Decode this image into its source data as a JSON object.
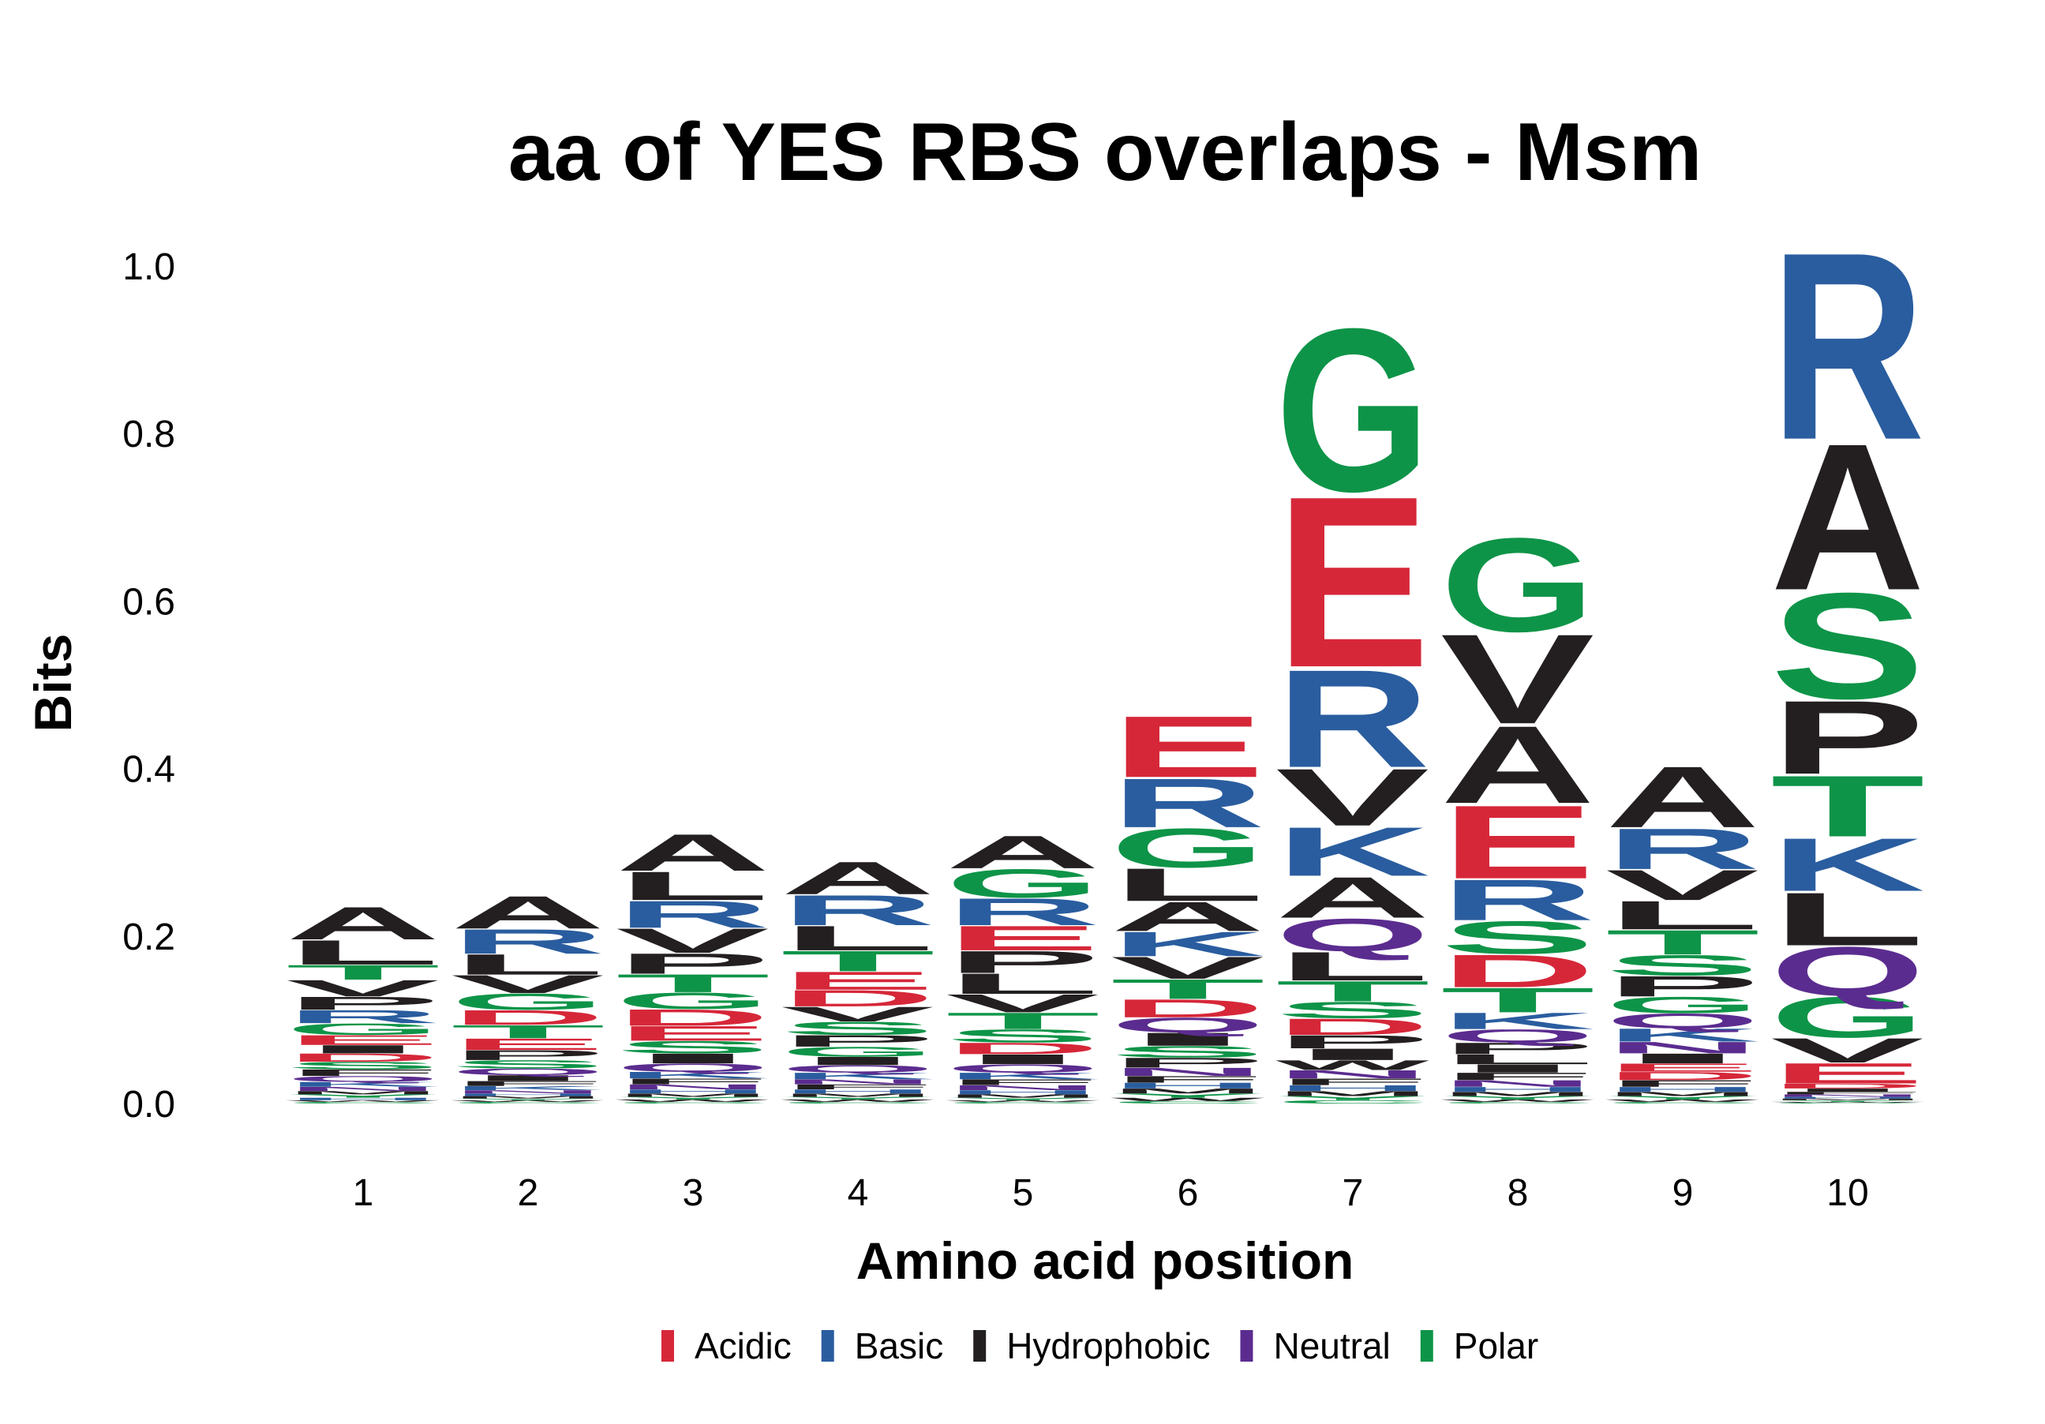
{
  "chart_data": {
    "type": "sequence-logo",
    "title": "aa of YES RBS overlaps - Msm",
    "xlabel": "Amino acid position",
    "ylabel": "Bits",
    "ylim": [
      0,
      1.0
    ],
    "yticks": [
      "0.0",
      "0.2",
      "0.4",
      "0.6",
      "0.8",
      "1.0"
    ],
    "xticks": [
      "1",
      "2",
      "3",
      "4",
      "5",
      "6",
      "7",
      "8",
      "9",
      "10"
    ],
    "legend_position": "bottom",
    "groups": {
      "Acidic": {
        "color": "#d62739",
        "residues": [
          "D",
          "E"
        ]
      },
      "Basic": {
        "color": "#2a5d9f",
        "residues": [
          "R",
          "K",
          "H"
        ]
      },
      "Hydrophobic": {
        "color": "#231f20",
        "residues": [
          "A",
          "V",
          "L",
          "I",
          "P",
          "F",
          "W",
          "M"
        ]
      },
      "Neutral": {
        "color": "#5b2c8f",
        "residues": [
          "Q",
          "N"
        ]
      },
      "Polar": {
        "color": "#0e9448",
        "residues": [
          "G",
          "S",
          "T",
          "Y",
          "C"
        ]
      }
    },
    "legend": [
      {
        "name": "Acidic",
        "color": "#d62739"
      },
      {
        "name": "Basic",
        "color": "#2a5d9f"
      },
      {
        "name": "Hydrophobic",
        "color": "#231f20"
      },
      {
        "name": "Neutral",
        "color": "#5b2c8f"
      },
      {
        "name": "Polar",
        "color": "#0e9448"
      }
    ],
    "positions": [
      {
        "position": "1",
        "letters": [
          {
            "aa": "A",
            "bits": 0.04
          },
          {
            "aa": "L",
            "bits": 0.03
          },
          {
            "aa": "T",
            "bits": 0.018
          },
          {
            "aa": "V",
            "bits": 0.02
          },
          {
            "aa": "P",
            "bits": 0.016
          },
          {
            "aa": "R",
            "bits": 0.016
          },
          {
            "aa": "G",
            "bits": 0.014
          },
          {
            "aa": "E",
            "bits": 0.012
          },
          {
            "aa": "I",
            "bits": 0.01
          },
          {
            "aa": "D",
            "bits": 0.01
          },
          {
            "aa": "S",
            "bits": 0.009
          },
          {
            "aa": "F",
            "bits": 0.008
          },
          {
            "aa": "Q",
            "bits": 0.007
          },
          {
            "aa": "K",
            "bits": 0.006
          },
          {
            "aa": "N",
            "bits": 0.005
          },
          {
            "aa": "M",
            "bits": 0.004
          },
          {
            "aa": "Y",
            "bits": 0.004
          },
          {
            "aa": "H",
            "bits": 0.003
          },
          {
            "aa": "W",
            "bits": 0.002
          },
          {
            "aa": "C",
            "bits": 0.002
          }
        ]
      },
      {
        "position": "2",
        "letters": [
          {
            "aa": "A",
            "bits": 0.04
          },
          {
            "aa": "R",
            "bits": 0.03
          },
          {
            "aa": "L",
            "bits": 0.025
          },
          {
            "aa": "V",
            "bits": 0.022
          },
          {
            "aa": "G",
            "bits": 0.02
          },
          {
            "aa": "D",
            "bits": 0.018
          },
          {
            "aa": "T",
            "bits": 0.016
          },
          {
            "aa": "E",
            "bits": 0.014
          },
          {
            "aa": "P",
            "bits": 0.012
          },
          {
            "aa": "S",
            "bits": 0.01
          },
          {
            "aa": "Q",
            "bits": 0.008
          },
          {
            "aa": "I",
            "bits": 0.007
          },
          {
            "aa": "F",
            "bits": 0.006
          },
          {
            "aa": "K",
            "bits": 0.005
          },
          {
            "aa": "N",
            "bits": 0.004
          },
          {
            "aa": "H",
            "bits": 0.003
          },
          {
            "aa": "M",
            "bits": 0.003
          },
          {
            "aa": "Y",
            "bits": 0.002
          },
          {
            "aa": "W",
            "bits": 0.002
          },
          {
            "aa": "C",
            "bits": 0.002
          }
        ]
      },
      {
        "position": "3",
        "letters": [
          {
            "aa": "A",
            "bits": 0.045
          },
          {
            "aa": "L",
            "bits": 0.035
          },
          {
            "aa": "R",
            "bits": 0.033
          },
          {
            "aa": "V",
            "bits": 0.03
          },
          {
            "aa": "P",
            "bits": 0.025
          },
          {
            "aa": "T",
            "bits": 0.022
          },
          {
            "aa": "G",
            "bits": 0.02
          },
          {
            "aa": "D",
            "bits": 0.02
          },
          {
            "aa": "E",
            "bits": 0.018
          },
          {
            "aa": "S",
            "bits": 0.015
          },
          {
            "aa": "I",
            "bits": 0.012
          },
          {
            "aa": "Q",
            "bits": 0.01
          },
          {
            "aa": "K",
            "bits": 0.008
          },
          {
            "aa": "F",
            "bits": 0.007
          },
          {
            "aa": "N",
            "bits": 0.006
          },
          {
            "aa": "H",
            "bits": 0.005
          },
          {
            "aa": "M",
            "bits": 0.004
          },
          {
            "aa": "Y",
            "bits": 0.003
          },
          {
            "aa": "W",
            "bits": 0.003
          },
          {
            "aa": "C",
            "bits": 0.002
          }
        ]
      },
      {
        "position": "4",
        "letters": [
          {
            "aa": "A",
            "bits": 0.04
          },
          {
            "aa": "R",
            "bits": 0.037
          },
          {
            "aa": "L",
            "bits": 0.03
          },
          {
            "aa": "T",
            "bits": 0.025
          },
          {
            "aa": "E",
            "bits": 0.022
          },
          {
            "aa": "D",
            "bits": 0.02
          },
          {
            "aa": "V",
            "bits": 0.018
          },
          {
            "aa": "S",
            "bits": 0.016
          },
          {
            "aa": "P",
            "bits": 0.014
          },
          {
            "aa": "G",
            "bits": 0.012
          },
          {
            "aa": "I",
            "bits": 0.01
          },
          {
            "aa": "Q",
            "bits": 0.009
          },
          {
            "aa": "K",
            "bits": 0.008
          },
          {
            "aa": "N",
            "bits": 0.006
          },
          {
            "aa": "F",
            "bits": 0.006
          },
          {
            "aa": "H",
            "bits": 0.005
          },
          {
            "aa": "M",
            "bits": 0.004
          },
          {
            "aa": "Y",
            "bits": 0.003
          },
          {
            "aa": "W",
            "bits": 0.003
          },
          {
            "aa": "C",
            "bits": 0.002
          }
        ]
      },
      {
        "position": "5",
        "letters": [
          {
            "aa": "A",
            "bits": 0.04
          },
          {
            "aa": "G",
            "bits": 0.035
          },
          {
            "aa": "R",
            "bits": 0.033
          },
          {
            "aa": "E",
            "bits": 0.03
          },
          {
            "aa": "P",
            "bits": 0.027
          },
          {
            "aa": "L",
            "bits": 0.025
          },
          {
            "aa": "V",
            "bits": 0.022
          },
          {
            "aa": "T",
            "bits": 0.02
          },
          {
            "aa": "S",
            "bits": 0.016
          },
          {
            "aa": "D",
            "bits": 0.014
          },
          {
            "aa": "I",
            "bits": 0.012
          },
          {
            "aa": "Q",
            "bits": 0.01
          },
          {
            "aa": "K",
            "bits": 0.008
          },
          {
            "aa": "F",
            "bits": 0.007
          },
          {
            "aa": "N",
            "bits": 0.006
          },
          {
            "aa": "H",
            "bits": 0.005
          },
          {
            "aa": "M",
            "bits": 0.004
          },
          {
            "aa": "Y",
            "bits": 0.003
          },
          {
            "aa": "W",
            "bits": 0.002
          },
          {
            "aa": "C",
            "bits": 0.002
          }
        ]
      },
      {
        "position": "6",
        "letters": [
          {
            "aa": "E",
            "bits": 0.075
          },
          {
            "aa": "R",
            "bits": 0.06
          },
          {
            "aa": "G",
            "bits": 0.048
          },
          {
            "aa": "L",
            "bits": 0.04
          },
          {
            "aa": "A",
            "bits": 0.036
          },
          {
            "aa": "K",
            "bits": 0.03
          },
          {
            "aa": "V",
            "bits": 0.027
          },
          {
            "aa": "T",
            "bits": 0.024
          },
          {
            "aa": "D",
            "bits": 0.022
          },
          {
            "aa": "Q",
            "bits": 0.018
          },
          {
            "aa": "I",
            "bits": 0.016
          },
          {
            "aa": "S",
            "bits": 0.014
          },
          {
            "aa": "P",
            "bits": 0.012
          },
          {
            "aa": "N",
            "bits": 0.01
          },
          {
            "aa": "F",
            "bits": 0.008
          },
          {
            "aa": "H",
            "bits": 0.007
          },
          {
            "aa": "M",
            "bits": 0.006
          },
          {
            "aa": "Y",
            "bits": 0.005
          },
          {
            "aa": "W",
            "bits": 0.004
          },
          {
            "aa": "C",
            "bits": 0.003
          }
        ]
      },
      {
        "position": "7",
        "letters": [
          {
            "aa": "G",
            "bits": 0.2
          },
          {
            "aa": "E",
            "bits": 0.21
          },
          {
            "aa": "R",
            "bits": 0.12
          },
          {
            "aa": "V",
            "bits": 0.07
          },
          {
            "aa": "K",
            "bits": 0.06
          },
          {
            "aa": "A",
            "bits": 0.05
          },
          {
            "aa": "Q",
            "bits": 0.04
          },
          {
            "aa": "L",
            "bits": 0.035
          },
          {
            "aa": "T",
            "bits": 0.025
          },
          {
            "aa": "S",
            "bits": 0.02
          },
          {
            "aa": "D",
            "bits": 0.02
          },
          {
            "aa": "P",
            "bits": 0.016
          },
          {
            "aa": "I",
            "bits": 0.014
          },
          {
            "aa": "W",
            "bits": 0.012
          },
          {
            "aa": "N",
            "bits": 0.01
          },
          {
            "aa": "F",
            "bits": 0.008
          },
          {
            "aa": "H",
            "bits": 0.007
          },
          {
            "aa": "M",
            "bits": 0.006
          },
          {
            "aa": "Y",
            "bits": 0.005
          },
          {
            "aa": "C",
            "bits": 0.004
          }
        ]
      },
      {
        "position": "8",
        "letters": [
          {
            "aa": "G",
            "bits": 0.115
          },
          {
            "aa": "V",
            "bits": 0.11
          },
          {
            "aa": "A",
            "bits": 0.095
          },
          {
            "aa": "E",
            "bits": 0.09
          },
          {
            "aa": "R",
            "bits": 0.05
          },
          {
            "aa": "S",
            "bits": 0.04
          },
          {
            "aa": "D",
            "bits": 0.04
          },
          {
            "aa": "T",
            "bits": 0.03
          },
          {
            "aa": "K",
            "bits": 0.02
          },
          {
            "aa": "Q",
            "bits": 0.016
          },
          {
            "aa": "P",
            "bits": 0.014
          },
          {
            "aa": "L",
            "bits": 0.012
          },
          {
            "aa": "I",
            "bits": 0.01
          },
          {
            "aa": "F",
            "bits": 0.009
          },
          {
            "aa": "N",
            "bits": 0.008
          },
          {
            "aa": "H",
            "bits": 0.006
          },
          {
            "aa": "M",
            "bits": 0.005
          },
          {
            "aa": "Y",
            "bits": 0.004
          },
          {
            "aa": "W",
            "bits": 0.003
          },
          {
            "aa": "C",
            "bits": 0.002
          }
        ]
      },
      {
        "position": "9",
        "letters": [
          {
            "aa": "A",
            "bits": 0.075
          },
          {
            "aa": "R",
            "bits": 0.05
          },
          {
            "aa": "V",
            "bits": 0.037
          },
          {
            "aa": "L",
            "bits": 0.035
          },
          {
            "aa": "T",
            "bits": 0.03
          },
          {
            "aa": "S",
            "bits": 0.025
          },
          {
            "aa": "P",
            "bits": 0.025
          },
          {
            "aa": "G",
            "bits": 0.02
          },
          {
            "aa": "Q",
            "bits": 0.018
          },
          {
            "aa": "K",
            "bits": 0.016
          },
          {
            "aa": "N",
            "bits": 0.014
          },
          {
            "aa": "I",
            "bits": 0.012
          },
          {
            "aa": "E",
            "bits": 0.01
          },
          {
            "aa": "D",
            "bits": 0.01
          },
          {
            "aa": "F",
            "bits": 0.008
          },
          {
            "aa": "H",
            "bits": 0.006
          },
          {
            "aa": "M",
            "bits": 0.005
          },
          {
            "aa": "Y",
            "bits": 0.004
          },
          {
            "aa": "W",
            "bits": 0.003
          },
          {
            "aa": "C",
            "bits": 0.002
          }
        ]
      },
      {
        "position": "10",
        "letters": [
          {
            "aa": "R",
            "bits": 0.23
          },
          {
            "aa": "A",
            "bits": 0.18
          },
          {
            "aa": "S",
            "bits": 0.13
          },
          {
            "aa": "P",
            "bits": 0.09
          },
          {
            "aa": "T",
            "bits": 0.075
          },
          {
            "aa": "K",
            "bits": 0.065
          },
          {
            "aa": "L",
            "bits": 0.065
          },
          {
            "aa": "Q",
            "bits": 0.06
          },
          {
            "aa": "G",
            "bits": 0.05
          },
          {
            "aa": "V",
            "bits": 0.03
          },
          {
            "aa": "E",
            "bits": 0.025
          },
          {
            "aa": "D",
            "bits": 0.006
          },
          {
            "aa": "I",
            "bits": 0.004
          },
          {
            "aa": "F",
            "bits": 0.003
          },
          {
            "aa": "N",
            "bits": 0.003
          },
          {
            "aa": "H",
            "bits": 0.002
          },
          {
            "aa": "M",
            "bits": 0.002
          },
          {
            "aa": "Y",
            "bits": 0.002
          },
          {
            "aa": "W",
            "bits": 0.001
          },
          {
            "aa": "C",
            "bits": 0.001
          }
        ]
      }
    ]
  }
}
